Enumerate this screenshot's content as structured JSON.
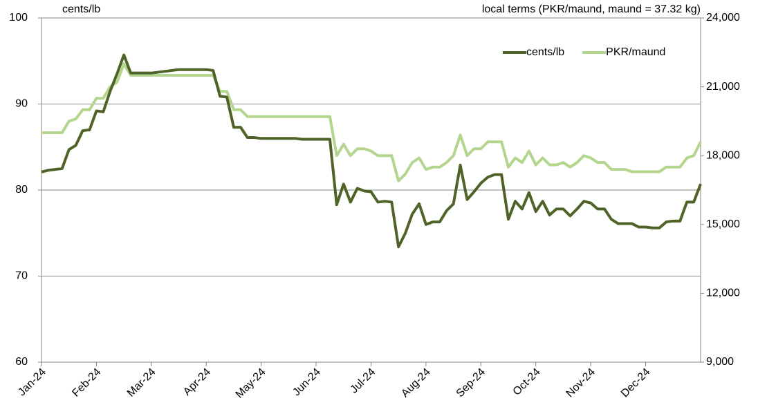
{
  "chart_data": {
    "type": "line",
    "y_label": "cents/lb",
    "y2_label": "local terms (PKR/maund, maund = 37.32 kg)",
    "categories": [
      "Jan-24",
      null,
      null,
      null,
      null,
      null,
      null,
      null,
      "Feb-24",
      null,
      null,
      null,
      null,
      null,
      null,
      null,
      "Mar-24",
      null,
      null,
      null,
      null,
      null,
      null,
      null,
      "Apr-24",
      null,
      null,
      null,
      null,
      null,
      null,
      null,
      "May-24",
      null,
      null,
      null,
      null,
      null,
      null,
      null,
      "Jun-24",
      null,
      null,
      null,
      null,
      null,
      null,
      null,
      "Jul-24",
      null,
      null,
      null,
      null,
      null,
      null,
      null,
      "Aug-24",
      null,
      null,
      null,
      null,
      null,
      null,
      null,
      "Sep-24",
      null,
      null,
      null,
      null,
      null,
      null,
      null,
      "Oct-24",
      null,
      null,
      null,
      null,
      null,
      null,
      null,
      "Nov-24",
      null,
      null,
      null,
      null,
      null,
      null,
      null,
      "Dec-24",
      null,
      null,
      null,
      null,
      null,
      null,
      null,
      null
    ],
    "series": [
      {
        "name": "cents/lb",
        "color": "#4f6228",
        "values": [
          82.1,
          82.3,
          82.4,
          82.5,
          84.7,
          85.2,
          86.9,
          87.0,
          89.2,
          89.1,
          91.5,
          93.5,
          95.7,
          93.6,
          93.6,
          93.6,
          93.6,
          93.7,
          93.8,
          93.9,
          94.0,
          94.0,
          94.0,
          94.0,
          94.0,
          93.9,
          90.9,
          90.8,
          87.3,
          87.3,
          86.1,
          86.1,
          86.0,
          86.0,
          86.0,
          86.0,
          86.0,
          86.0,
          85.9,
          85.9,
          85.9,
          85.9,
          85.9,
          78.3,
          80.7,
          78.6,
          80.2,
          79.9,
          79.8,
          78.6,
          78.7,
          78.6,
          73.4,
          75.0,
          77.2,
          78.4,
          76.0,
          76.3,
          76.3,
          77.6,
          78.4,
          82.9,
          78.9,
          79.8,
          80.8,
          81.5,
          81.8,
          81.8,
          76.6,
          78.7,
          77.8,
          79.7,
          77.5,
          78.7,
          77.1,
          77.8,
          77.8,
          77.0,
          77.8,
          78.7,
          78.5,
          77.8,
          77.8,
          76.6,
          76.1,
          76.1,
          76.1,
          75.7,
          75.7,
          75.6,
          75.6,
          76.3,
          76.4,
          76.4,
          78.6,
          78.6,
          80.7
        ]
      },
      {
        "name": "PKR/maund",
        "color": "#b3d58e",
        "axis": "y2",
        "values": [
          19000,
          19000,
          19000,
          19000,
          19500,
          19600,
          20000,
          20000,
          20500,
          20500,
          21000,
          21200,
          22000,
          21500,
          21500,
          21500,
          21500,
          21500,
          21500,
          21500,
          21500,
          21500,
          21500,
          21500,
          21500,
          21500,
          20800,
          20800,
          20000,
          20000,
          19700,
          19700,
          19700,
          19700,
          19700,
          19700,
          19700,
          19700,
          19700,
          19700,
          19700,
          19700,
          19700,
          18000,
          18500,
          18000,
          18300,
          18300,
          18200,
          18000,
          18000,
          18000,
          16900,
          17200,
          17700,
          17900,
          17400,
          17500,
          17500,
          17700,
          18000,
          18900,
          18000,
          18300,
          18300,
          18600,
          18600,
          18600,
          17500,
          17900,
          17700,
          18200,
          17600,
          17900,
          17600,
          17600,
          17700,
          17500,
          17700,
          18000,
          17900,
          17700,
          17700,
          17400,
          17400,
          17400,
          17300,
          17300,
          17300,
          17300,
          17300,
          17500,
          17500,
          17500,
          17900,
          18000,
          18600
        ]
      }
    ],
    "ylim": [
      60,
      100
    ],
    "yticks": [
      60,
      70,
      80,
      90,
      100
    ],
    "y2lim": [
      9000,
      24000
    ],
    "y2ticks": [
      {
        "value": 9000,
        "label": "9,000"
      },
      {
        "value": 12000,
        "label": "12,000"
      },
      {
        "value": 15000,
        "label": "15,000"
      },
      {
        "value": 18000,
        "label": "18,000"
      },
      {
        "value": 21000,
        "label": "21,000"
      },
      {
        "value": 24000,
        "label": "24,000"
      }
    ],
    "grid": true,
    "legend": "top-right"
  }
}
